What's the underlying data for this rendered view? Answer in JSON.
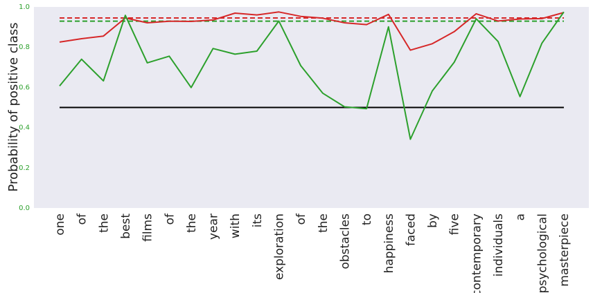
{
  "chart_data": {
    "type": "line",
    "title": "",
    "xlabel": "",
    "ylabel": "Probability of positive class",
    "ylim": [
      0.0,
      1.0
    ],
    "yticks": [
      "0.0",
      "0.2",
      "0.4",
      "0.6",
      "0.8",
      "1.0"
    ],
    "grid": false,
    "legend": "none",
    "categories": [
      "one",
      "of",
      "the",
      "best",
      "films",
      "of",
      "the",
      "year",
      "with",
      "its",
      "exploration",
      "of",
      "the",
      "obstacles",
      "to",
      "happiness",
      "faced",
      "by",
      "five",
      "contemporary",
      "individuals",
      "a",
      "psychological",
      "masterpiece"
    ],
    "series": [
      {
        "color": "#d62728",
        "values": [
          0.825,
          0.842,
          0.855,
          0.945,
          0.921,
          0.929,
          0.928,
          0.935,
          0.969,
          0.96,
          0.975,
          0.953,
          0.944,
          0.921,
          0.912,
          0.963,
          0.785,
          0.817,
          0.877,
          0.966,
          0.93,
          0.94,
          0.942,
          0.972
        ]
      },
      {
        "color": "#2ca02c",
        "values": [
          0.607,
          0.74,
          0.632,
          0.958,
          0.722,
          0.755,
          0.599,
          0.793,
          0.765,
          0.78,
          0.93,
          0.708,
          0.571,
          0.503,
          0.494,
          0.901,
          0.342,
          0.582,
          0.725,
          0.941,
          0.828,
          0.554,
          0.82,
          0.975
        ]
      }
    ],
    "reference_lines": [
      {
        "y": 0.945,
        "color": "#d62728",
        "style": "dashed"
      },
      {
        "y": 0.929,
        "color": "#2ca02c",
        "style": "dashed"
      },
      {
        "y": 0.5,
        "color": "#000000",
        "style": "solid"
      }
    ],
    "tick_color": "#2ca02c",
    "background": "#eaeaf2"
  }
}
